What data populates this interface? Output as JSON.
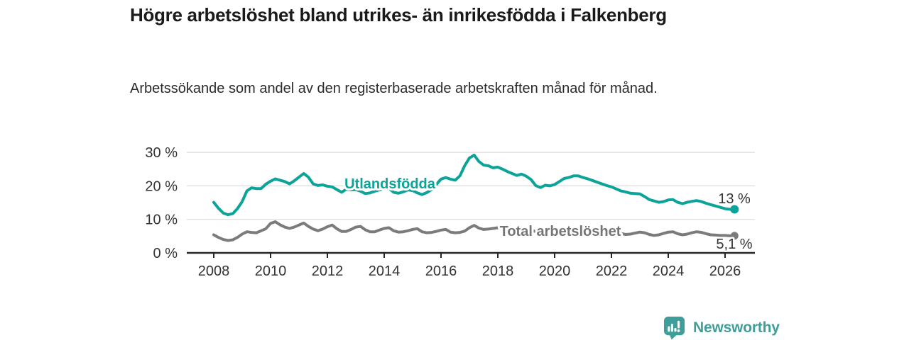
{
  "header": {
    "title": "Högre arbetslöshet bland utrikes- än inrikesfödda i Falkenberg",
    "subtitle": "Arbetssökande som andel av den registerbaserade arbetskraften månad för månad."
  },
  "footer": {
    "brand": "Newsworthy",
    "logo_icon": "bar-chart-speech-bubble-icon"
  },
  "colors": {
    "accent_teal": "#0ca398",
    "series_gray": "#7b7b7b",
    "label_gray": "#757575",
    "logo_teal": "#3f9e99",
    "axis": "#262626",
    "grid": "#dcdcdc",
    "tick_text": "#333333"
  },
  "chart_data": {
    "type": "line",
    "title": "Högre arbetslöshet bland utrikes- än inrikesfödda i Falkenberg",
    "subtitle": "Arbetssökande som andel av den registerbaserade arbetskraften månad för månad.",
    "x_unit": "år (månadsdata)",
    "y_unit": "%",
    "x_start": 2008.0,
    "x_step": 0.1666667,
    "xlim": [
      2007.05,
      2027.1
    ],
    "ylim": [
      0,
      31
    ],
    "grid": "horizontal only",
    "legend": "inline labels on lines",
    "xticks": [
      "2008",
      "2010",
      "2012",
      "2014",
      "2016",
      "2018",
      "2020",
      "2022",
      "2024",
      "2026"
    ],
    "xtick_values": [
      2008,
      2010,
      2012,
      2014,
      2016,
      2018,
      2020,
      2022,
      2024,
      2026
    ],
    "ytick_labels": [
      "0 %",
      "10 %",
      "20 %",
      "30 %"
    ],
    "ytick_values": [
      0,
      10,
      20,
      30
    ],
    "series": [
      {
        "name": "Utlandsfödda",
        "color": "#0ca398",
        "end_label": "13 %",
        "end_value": 13.0,
        "values": [
          15.1,
          13.3,
          11.9,
          11.4,
          11.7,
          13.2,
          15.3,
          18.5,
          19.4,
          19.2,
          19.2,
          20.5,
          21.4,
          22.1,
          21.7,
          21.3,
          20.6,
          21.5,
          22.6,
          23.7,
          22.6,
          20.6,
          20.1,
          20.3,
          19.9,
          19.7,
          18.9,
          18.1,
          19.0,
          18.8,
          18.9,
          18.4,
          17.7,
          17.9,
          18.4,
          18.8,
          19.3,
          19.3,
          18.1,
          17.8,
          18.2,
          18.8,
          18.6,
          17.9,
          17.4,
          18.0,
          18.9,
          20.4,
          22.0,
          22.5,
          22.0,
          21.7,
          23.0,
          26.0,
          28.3,
          29.2,
          27.3,
          26.2,
          26.0,
          25.4,
          25.6,
          25.0,
          24.3,
          23.7,
          23.1,
          23.5,
          22.9,
          21.9,
          20.1,
          19.5,
          20.2,
          20.0,
          20.4,
          21.3,
          22.2,
          22.5,
          23.0,
          23.0,
          22.5,
          22.1,
          21.6,
          21.1,
          20.6,
          20.1,
          19.7,
          19.1,
          18.5,
          18.2,
          17.8,
          17.7,
          17.6,
          16.8,
          15.9,
          15.5,
          15.1,
          15.3,
          15.8,
          15.9,
          15.1,
          14.7,
          15.1,
          15.4,
          15.6,
          15.3,
          14.8,
          14.4,
          14.0,
          13.6,
          13.2,
          13.0,
          13.0
        ]
      },
      {
        "name": "Total arbetslöshet",
        "color": "#7b7b7b",
        "end_label": "5,1 %",
        "end_value": 5.1,
        "values": [
          5.4,
          4.6,
          4.0,
          3.7,
          3.9,
          4.6,
          5.6,
          6.3,
          6.1,
          6.0,
          6.6,
          7.2,
          8.8,
          9.3,
          8.4,
          7.7,
          7.3,
          7.7,
          8.3,
          8.9,
          7.9,
          7.1,
          6.6,
          7.1,
          7.8,
          8.3,
          7.2,
          6.4,
          6.4,
          7.0,
          7.7,
          7.9,
          6.9,
          6.3,
          6.3,
          6.8,
          7.3,
          7.5,
          6.6,
          6.2,
          6.3,
          6.6,
          7.0,
          7.2,
          6.3,
          6.0,
          6.1,
          6.4,
          6.8,
          7.0,
          6.2,
          6.0,
          6.1,
          6.5,
          7.5,
          8.2,
          7.4,
          7.0,
          7.1,
          7.3,
          7.5,
          7.2,
          6.6,
          6.4,
          6.5,
          6.9,
          7.2,
          6.9,
          6.3,
          6.2,
          6.3,
          6.6,
          6.9,
          7.2,
          7.4,
          7.1,
          6.9,
          6.8,
          6.9,
          6.7,
          6.2,
          5.8,
          5.9,
          6.2,
          6.4,
          6.2,
          5.8,
          5.5,
          5.6,
          5.9,
          6.2,
          6.0,
          5.5,
          5.2,
          5.4,
          5.8,
          6.2,
          6.3,
          5.7,
          5.4,
          5.6,
          6.0,
          6.3,
          6.1,
          5.7,
          5.4,
          5.3,
          5.2,
          5.2,
          5.1,
          5.1
        ]
      }
    ]
  }
}
